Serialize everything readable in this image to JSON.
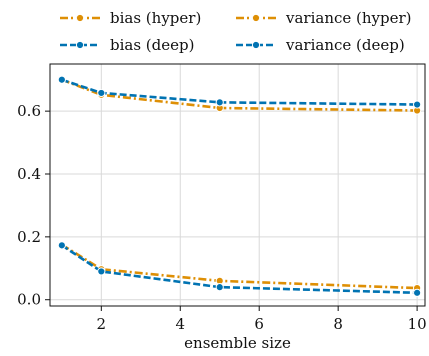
{
  "chart_data": {
    "type": "line",
    "xlabel": "ensemble size",
    "ylabel": "",
    "xlim": [
      0.7,
      10.2
    ],
    "ylim": [
      -0.02,
      0.75
    ],
    "xticks": [
      2,
      4,
      6,
      8,
      10
    ],
    "yticks": [
      0.0,
      0.2,
      0.4,
      0.6
    ],
    "xtick_labels": [
      "2",
      "4",
      "6",
      "8",
      "10"
    ],
    "ytick_labels": [
      "0.0",
      "0.2",
      "0.4",
      "0.6"
    ],
    "grid": true,
    "legend_placement": "top, above plot, 2 columns",
    "series": [
      {
        "name": "bias (hyper)",
        "color": "#de8f05",
        "style": "dash-dot",
        "x": [
          1,
          2,
          5,
          10
        ],
        "y": [
          0.7,
          0.652,
          0.61,
          0.602
        ]
      },
      {
        "name": "variance (hyper)",
        "color": "#de8f05",
        "style": "dash-dot",
        "x": [
          1,
          2,
          5,
          10
        ],
        "y": [
          0.175,
          0.097,
          0.06,
          0.037
        ]
      },
      {
        "name": "bias (deep)",
        "color": "#0173b2",
        "style": "dashed",
        "x": [
          1,
          2,
          5,
          10
        ],
        "y": [
          0.7,
          0.658,
          0.628,
          0.621
        ]
      },
      {
        "name": "variance (deep)",
        "color": "#0173b2",
        "style": "dashed",
        "x": [
          1,
          2,
          5,
          10
        ],
        "y": [
          0.173,
          0.09,
          0.04,
          0.022
        ]
      }
    ]
  }
}
